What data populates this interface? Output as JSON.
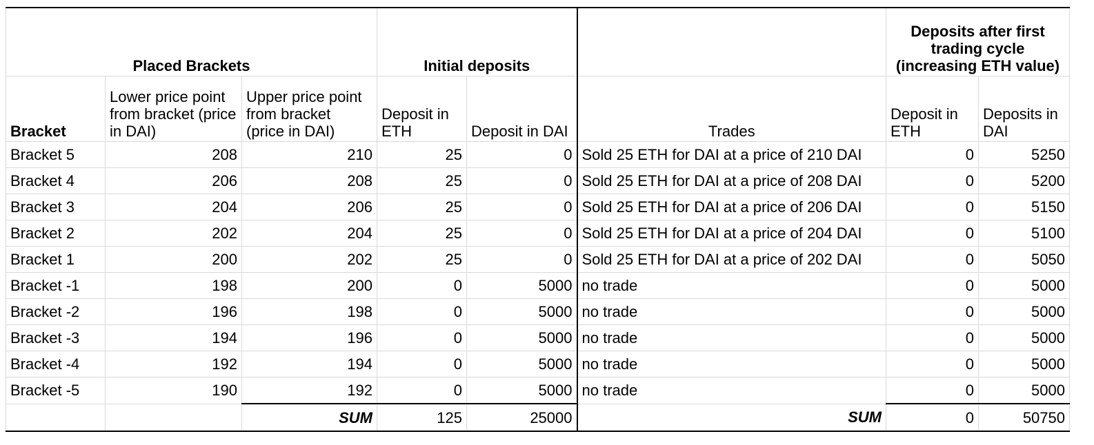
{
  "headers": {
    "placed_brackets": "Placed Brackets",
    "initial_deposits": "Initial deposits",
    "deposits_after": "Deposits after first trading cycle (increasing ETH value)",
    "bracket": "Bracket",
    "lower_price": "Lower price point from bracket (price in DAI)",
    "upper_price": "Upper price point from bracket (price in DAI)",
    "deposit_eth": "Deposit in ETH",
    "deposit_dai": "Deposit in DAI",
    "trades": "Trades",
    "after_eth": "Deposit in ETH",
    "after_dai": "Deposits in DAI"
  },
  "rows": [
    {
      "bracket": "Bracket 5",
      "lower": "208",
      "upper": "210",
      "eth": "25",
      "dai": "0",
      "trade": "Sold 25 ETH for DAI at a price of 210 DAI",
      "after_eth": "0",
      "after_dai": "5250"
    },
    {
      "bracket": "Bracket 4",
      "lower": "206",
      "upper": "208",
      "eth": "25",
      "dai": "0",
      "trade": "Sold 25 ETH for DAI at a price of 208 DAI",
      "after_eth": "0",
      "after_dai": "5200"
    },
    {
      "bracket": "Bracket 3",
      "lower": "204",
      "upper": "206",
      "eth": "25",
      "dai": "0",
      "trade": "Sold 25 ETH for DAI at a price of 206 DAI",
      "after_eth": "0",
      "after_dai": "5150"
    },
    {
      "bracket": "Bracket 2",
      "lower": "202",
      "upper": "204",
      "eth": "25",
      "dai": "0",
      "trade": "Sold 25 ETH for DAI at a price of 204 DAI",
      "after_eth": "0",
      "after_dai": "5100"
    },
    {
      "bracket": "Bracket 1",
      "lower": "200",
      "upper": "202",
      "eth": "25",
      "dai": "0",
      "trade": "Sold 25 ETH for DAI at a price of 202 DAI",
      "after_eth": "0",
      "after_dai": "5050"
    },
    {
      "bracket": "Bracket -1",
      "lower": "198",
      "upper": "200",
      "eth": "0",
      "dai": "5000",
      "trade": "no trade",
      "after_eth": "0",
      "after_dai": "5000"
    },
    {
      "bracket": "Bracket -2",
      "lower": "196",
      "upper": "198",
      "eth": "0",
      "dai": "5000",
      "trade": "no trade",
      "after_eth": "0",
      "after_dai": "5000"
    },
    {
      "bracket": "Bracket -3",
      "lower": "194",
      "upper": "196",
      "eth": "0",
      "dai": "5000",
      "trade": "no trade",
      "after_eth": "0",
      "after_dai": "5000"
    },
    {
      "bracket": "Bracket -4",
      "lower": "192",
      "upper": "194",
      "eth": "0",
      "dai": "5000",
      "trade": "no trade",
      "after_eth": "0",
      "after_dai": "5000"
    },
    {
      "bracket": "Bracket -5",
      "lower": "190",
      "upper": "192",
      "eth": "0",
      "dai": "5000",
      "trade": "no trade",
      "after_eth": "0",
      "after_dai": "5000"
    }
  ],
  "sum": {
    "label_left": "SUM",
    "eth": "125",
    "dai": "25000",
    "label_right": "SUM",
    "after_eth": "0",
    "after_dai": "50750"
  }
}
